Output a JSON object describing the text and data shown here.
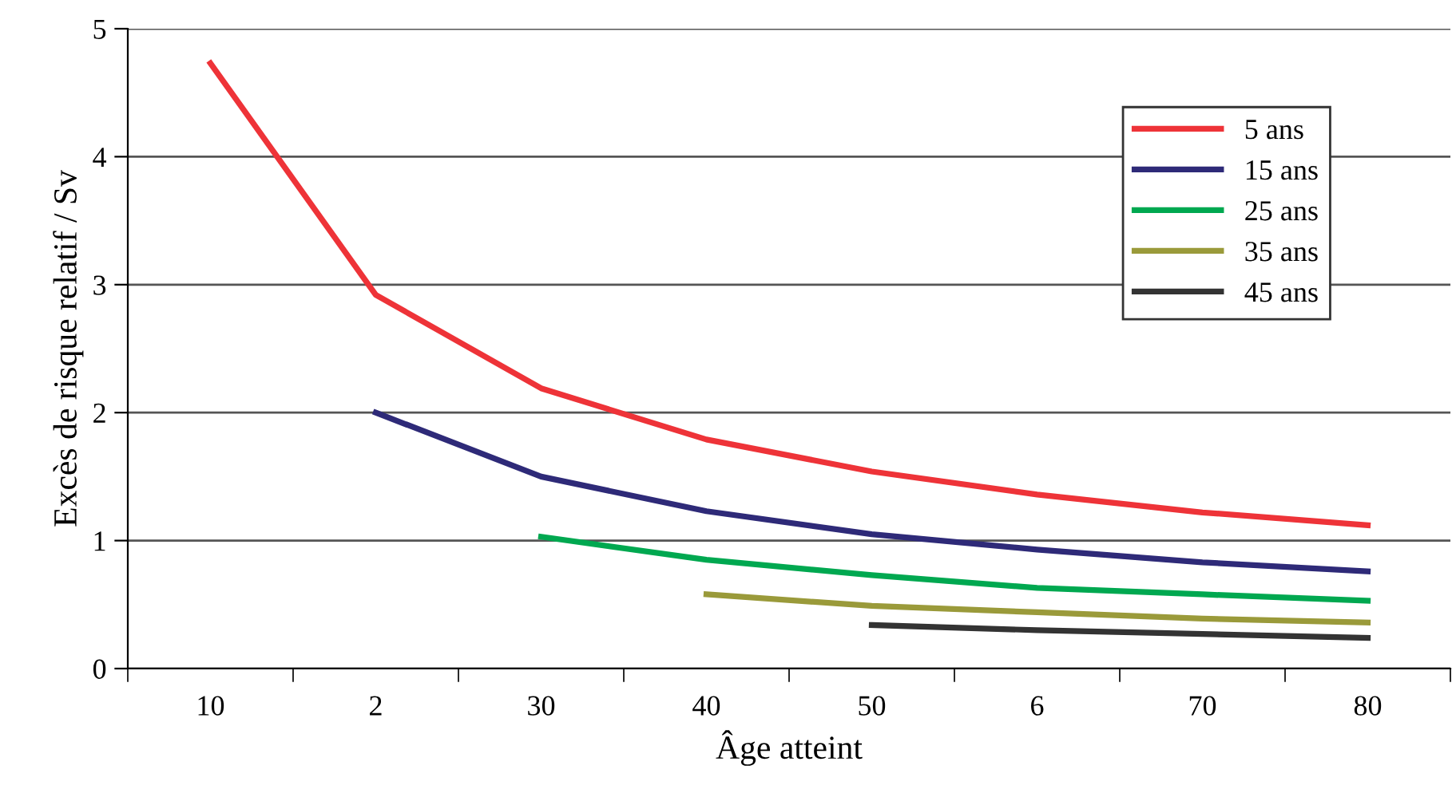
{
  "chart_data": {
    "type": "line",
    "xlabel": "Âge atteint",
    "ylabel": "Excès de risque relatif / Sv",
    "categories": [
      "10",
      "2",
      "30",
      "40",
      "50",
      "6",
      "70",
      "80"
    ],
    "series": [
      {
        "name": "5 ans",
        "color": "#ee3338",
        "values": [
          4.73,
          2.92,
          2.19,
          1.79,
          1.54,
          1.36,
          1.22,
          1.12
        ]
      },
      {
        "name": "15 ans",
        "color": "#2e2a78",
        "values": [
          null,
          2.0,
          1.5,
          1.23,
          1.05,
          0.93,
          0.83,
          0.76
        ]
      },
      {
        "name": "25 ans",
        "color": "#00a850",
        "values": [
          null,
          null,
          1.03,
          0.85,
          0.73,
          0.63,
          0.58,
          0.53
        ]
      },
      {
        "name": "35 ans",
        "color": "#9a9a3a",
        "values": [
          null,
          null,
          null,
          0.58,
          0.49,
          0.44,
          0.39,
          0.36
        ]
      },
      {
        "name": "45 ans",
        "color": "#333333",
        "values": [
          null,
          null,
          null,
          null,
          0.34,
          0.3,
          0.27,
          0.24
        ]
      }
    ],
    "ylim": [
      0,
      5
    ],
    "yticks": [
      0,
      1,
      2,
      3,
      4,
      5
    ],
    "grid": "y",
    "legend": "top right",
    "marker": "none",
    "line_style": "solid"
  }
}
